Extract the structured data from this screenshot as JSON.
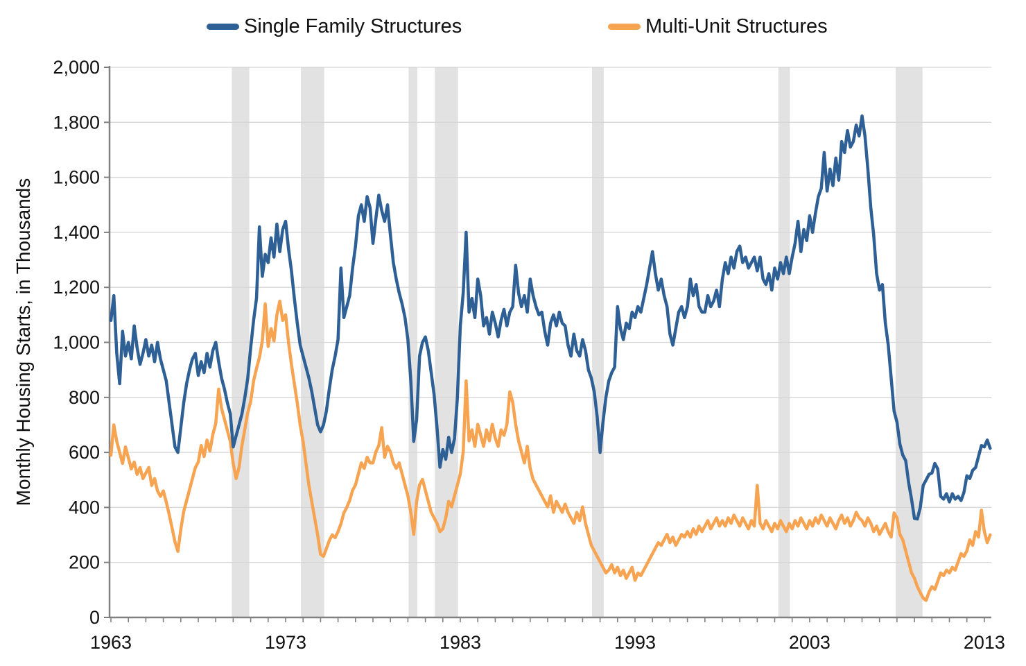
{
  "legend": {
    "items": [
      {
        "label": "Single Family Structures",
        "color": "#2E6096"
      },
      {
        "label": "Multi-Unit Structures",
        "color": "#F7A452"
      }
    ]
  },
  "style": {
    "background": "#ffffff",
    "band_color": "#E2E2E2",
    "grid_color": "#D6D6D6",
    "axis_color": "#808080",
    "text_color": "#111111",
    "line_width": 4.5
  },
  "chart_data": {
    "type": "line",
    "title": "",
    "xlabel": "",
    "ylabel": "Monthly Housing Starts, in Thousands",
    "grid": "horizontal",
    "legend_position": "top",
    "ylim": [
      0,
      2000
    ],
    "xlim": [
      1962.92,
      2013.4
    ],
    "y_ticks": [
      0,
      200,
      400,
      600,
      800,
      1000,
      1200,
      1400,
      1600,
      1800,
      2000
    ],
    "y_tick_labels": [
      "0",
      "200",
      "400",
      "600",
      "800",
      "1,000",
      "1,200",
      "1,400",
      "1,600",
      "1,800",
      "2,000"
    ],
    "x_ticks": [
      1963,
      1973,
      1983,
      1993,
      2003,
      2013
    ],
    "x_tick_labels": [
      "1963",
      "1973",
      "1983",
      "1993",
      "2003",
      "2013"
    ],
    "x_minor_tick_start": 1963,
    "x_minor_tick_end": 2013,
    "recession_bands": [
      [
        1969.92,
        1970.92
      ],
      [
        1973.87,
        1975.21
      ],
      [
        1980.04,
        1980.54
      ],
      [
        1981.54,
        1982.87
      ],
      [
        1990.54,
        1991.21
      ],
      [
        2001.21,
        2001.87
      ],
      [
        2007.92,
        2009.46
      ]
    ],
    "x_start": 1963.0,
    "x_step_years": 0.166667,
    "units": "thousands of housing starts, seasonally adjusted annual rate",
    "series": [
      {
        "name": "Single Family Structures",
        "color": "#2E6096",
        "values": [
          1080,
          1170,
          960,
          850,
          1040,
          950,
          1000,
          940,
          1060,
          980,
          920,
          960,
          1010,
          950,
          990,
          930,
          1000,
          940,
          900,
          860,
          780,
          700,
          620,
          600,
          690,
          780,
          850,
          900,
          940,
          960,
          880,
          930,
          890,
          960,
          910,
          970,
          1000,
          930,
          870,
          830,
          780,
          740,
          620,
          660,
          700,
          740,
          800,
          870,
          980,
          1080,
          1160,
          1420,
          1240,
          1320,
          1290,
          1380,
          1310,
          1430,
          1330,
          1410,
          1440,
          1340,
          1260,
          1160,
          1070,
          990,
          950,
          910,
          870,
          820,
          760,
          700,
          675,
          700,
          750,
          830,
          900,
          950,
          1010,
          1270,
          1090,
          1130,
          1170,
          1270,
          1350,
          1460,
          1500,
          1440,
          1530,
          1490,
          1360,
          1450,
          1535,
          1480,
          1440,
          1500,
          1390,
          1290,
          1230,
          1180,
          1140,
          1090,
          1010,
          860,
          640,
          720,
          950,
          1000,
          1020,
          970,
          890,
          810,
          690,
          546,
          610,
          575,
          655,
          600,
          650,
          800,
          1060,
          1180,
          1400,
          1110,
          1160,
          1090,
          1230,
          1170,
          1060,
          1090,
          1030,
          1110,
          1070,
          1020,
          1080,
          1120,
          1060,
          1110,
          1130,
          1280,
          1180,
          1130,
          1170,
          1110,
          1230,
          1170,
          1130,
          1100,
          1110,
          1040,
          990,
          1070,
          1100,
          1060,
          1110,
          1070,
          1060,
          990,
          950,
          1030,
          970,
          950,
          1010,
          970,
          900,
          870,
          820,
          730,
          600,
          710,
          800,
          860,
          890,
          910,
          1130,
          1050,
          1010,
          1070,
          1050,
          1110,
          1090,
          1130,
          1110,
          1160,
          1210,
          1270,
          1330,
          1250,
          1190,
          1230,
          1170,
          1130,
          1030,
          990,
          1050,
          1110,
          1130,
          1090,
          1130,
          1230,
          1170,
          1210,
          1130,
          1110,
          1110,
          1170,
          1130,
          1150,
          1190,
          1130,
          1230,
          1290,
          1250,
          1310,
          1270,
          1330,
          1350,
          1290,
          1310,
          1270,
          1290,
          1310,
          1260,
          1310,
          1230,
          1210,
          1250,
          1190,
          1270,
          1230,
          1290,
          1250,
          1310,
          1250,
          1310,
          1360,
          1440,
          1330,
          1410,
          1370,
          1460,
          1400,
          1470,
          1530,
          1560,
          1690,
          1550,
          1630,
          1570,
          1670,
          1590,
          1730,
          1690,
          1770,
          1710,
          1730,
          1790,
          1750,
          1823,
          1750,
          1630,
          1490,
          1390,
          1250,
          1190,
          1210,
          1070,
          990,
          870,
          750,
          710,
          630,
          590,
          570,
          490,
          430,
          360,
          358,
          400,
          480,
          500,
          520,
          525,
          560,
          540,
          440,
          430,
          450,
          420,
          450,
          430,
          440,
          425,
          455,
          515,
          505,
          535,
          545,
          585,
          625,
          620,
          645,
          615
        ]
      },
      {
        "name": "Multi-Unit Structures",
        "color": "#F7A452",
        "values": [
          590,
          700,
          640,
          600,
          560,
          620,
          580,
          540,
          565,
          520,
          545,
          505,
          525,
          545,
          480,
          505,
          460,
          440,
          460,
          420,
          375,
          325,
          275,
          240,
          320,
          385,
          425,
          465,
          505,
          545,
          565,
          625,
          585,
          645,
          605,
          665,
          705,
          830,
          760,
          720,
          680,
          640,
          560,
          505,
          545,
          625,
          685,
          745,
          785,
          860,
          905,
          945,
          1005,
          1140,
          985,
          1050,
          1005,
          1100,
          1150,
          1080,
          1100,
          1000,
          920,
          850,
          780,
          700,
          640,
          560,
          480,
          420,
          360,
          300,
          230,
          222,
          250,
          280,
          300,
          290,
          312,
          340,
          380,
          400,
          425,
          462,
          482,
          522,
          562,
          542,
          582,
          562,
          562,
          602,
          625,
          690,
          582,
          622,
          602,
          562,
          542,
          562,
          522,
          482,
          442,
          382,
          302,
          422,
          482,
          502,
          462,
          422,
          382,
          362,
          342,
          312,
          322,
          362,
          422,
          402,
          442,
          482,
          522,
          602,
          860,
          642,
          682,
          622,
          702,
          662,
          622,
          682,
          642,
          702,
          652,
          622,
          682,
          662,
          702,
          820,
          782,
          702,
          642,
          602,
          562,
          622,
          542,
          502,
          482,
          462,
          442,
          422,
          402,
          442,
          382,
          422,
          402,
          382,
          412,
          382,
          362,
          342,
          382,
          352,
          402,
          342,
          302,
          262,
          242,
          222,
          202,
          182,
          162,
          172,
          192,
          162,
          182,
          152,
          172,
          142,
          162,
          182,
          135,
          162,
          152,
          172,
          192,
          212,
          232,
          252,
          272,
          262,
          282,
          302,
          272,
          292,
          262,
          282,
          302,
          292,
          312,
          292,
          322,
          302,
          332,
          312,
          332,
          352,
          322,
          342,
          362,
          332,
          352,
          332,
          362,
          342,
          372,
          352,
          332,
          362,
          342,
          322,
          352,
          332,
          480,
          342,
          322,
          352,
          332,
          312,
          342,
          322,
          352,
          332,
          312,
          342,
          322,
          352,
          332,
          362,
          342,
          322,
          352,
          332,
          362,
          342,
          372,
          352,
          332,
          362,
          342,
          322,
          352,
          372,
          342,
          362,
          332,
          352,
          382,
          362,
          352,
          332,
          362,
          342,
          312,
          332,
          302,
          322,
          342,
          312,
          292,
          380,
          362,
          302,
          282,
          242,
          202,
          162,
          142,
          112,
          90,
          70,
          62,
          92,
          112,
          102,
          132,
          162,
          152,
          172,
          162,
          182,
          172,
          202,
          232,
          222,
          242,
          282,
          262,
          312,
          292,
          390,
          312,
          272,
          300
        ]
      }
    ]
  }
}
